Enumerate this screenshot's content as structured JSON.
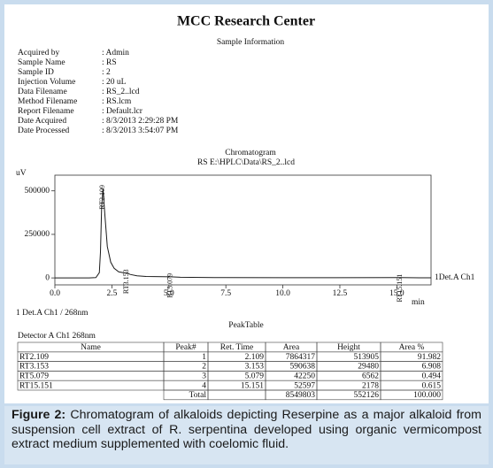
{
  "header": {
    "title": "MCC Research Center"
  },
  "sample_info": {
    "title": "Sample Information",
    "rows": [
      {
        "label": "Acquired by",
        "value": ": Admin"
      },
      {
        "label": "Sample Name",
        "value": ": RS"
      },
      {
        "label": "Sample ID",
        "value": ": 2"
      },
      {
        "label": "Injection Volume",
        "value": ": 20 uL"
      },
      {
        "label": "Data Filename",
        "value": ": RS_2..lcd"
      },
      {
        "label": "Method Filename",
        "value": ": RS.lcm"
      },
      {
        "label": "Report Filename",
        "value": ": Default.lcr"
      },
      {
        "label": "Date Acquired",
        "value": ": 8/3/2013 2:29:28 PM"
      },
      {
        "label": "Date Processed",
        "value": ": 8/3/2013 3:54:07 PM"
      }
    ]
  },
  "chart_data": {
    "type": "line",
    "title": "Chromatogram",
    "subtitle": "RS E:\\HPLC\\Data\\RS_2..lcd",
    "xlabel": "min",
    "ylabel": "uV",
    "detector_label": "1  Det.A Ch1 / 268nm",
    "x": [
      0,
      1.5,
      1.8,
      1.95,
      2.0,
      2.05,
      2.109,
      2.2,
      2.3,
      2.45,
      2.6,
      2.8,
      3.0,
      3.153,
      3.3,
      3.6,
      4.0,
      5.079,
      5.5,
      7.0,
      10.0,
      15.151,
      16.0,
      16.5
    ],
    "series": [
      {
        "name": "1Det.A Ch1",
        "color": "#1a1a1a",
        "values": [
          0,
          0,
          2000,
          30000,
          150000,
          400000,
          513905,
          350000,
          180000,
          90000,
          55000,
          35000,
          30000,
          29480,
          20000,
          12000,
          8000,
          6562,
          4000,
          2000,
          1000,
          2178,
          500,
          500
        ]
      }
    ],
    "annotations": [
      {
        "text": "RT2.109",
        "x": 2.109,
        "y": 513905
      },
      {
        "text": "RT3.153",
        "x": 3.153,
        "y": 29480
      },
      {
        "text": "RT5.079",
        "x": 5.079,
        "y": 6562
      },
      {
        "text": "RT15.151",
        "x": 15.151,
        "y": 2178
      }
    ],
    "xlim": [
      0,
      16.5
    ],
    "ylim": [
      -40000,
      590000
    ],
    "xticks": [
      {
        "value": 0,
        "label": "0.0"
      },
      {
        "value": 2.5,
        "label": "2.5"
      },
      {
        "value": 5,
        "label": "5.0"
      },
      {
        "value": 7.5,
        "label": "7.5"
      },
      {
        "value": 10,
        "label": "10.0"
      },
      {
        "value": 12.5,
        "label": "12.5"
      },
      {
        "value": 15,
        "label": "15.0"
      }
    ],
    "yticks": [
      0,
      250000,
      500000
    ]
  },
  "peak_table": {
    "title": "PeakTable",
    "detector": "Detector A Ch1 268nm",
    "columns": [
      "Name",
      "Peak#",
      "Ret. Time",
      "Area",
      "Height",
      "Area %"
    ],
    "rows": [
      [
        "RT2.109",
        "1",
        "2.109",
        "7864317",
        "513905",
        "91.982"
      ],
      [
        "RT3.153",
        "2",
        "3.153",
        "590638",
        "29480",
        "6.908"
      ],
      [
        "RT5.079",
        "3",
        "5.079",
        "42250",
        "6562",
        "0.494"
      ],
      [
        "RT15.151",
        "4",
        "15.151",
        "52597",
        "2178",
        "0.615"
      ]
    ],
    "total": {
      "label": "Total",
      "area": "8549803",
      "height": "552126",
      "area_pct": "100.000"
    }
  },
  "caption": {
    "label": "Figure 2:",
    "text": " Chromatogram of alkaloids depicting Reserpine as a major alkaloid from suspension cell extract of R. serpentina developed using organic vermicompost extract medium supplemented with coelomic fluid."
  }
}
